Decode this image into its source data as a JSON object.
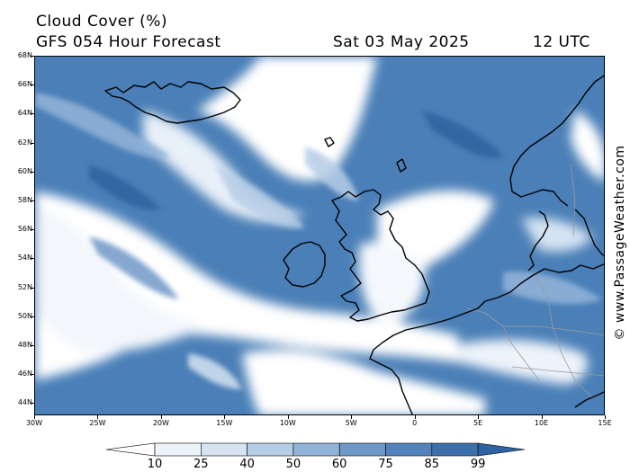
{
  "header": {
    "title": "Cloud Cover (%)",
    "subtitle": "GFS 054 Hour Forecast",
    "date": "Sat 03 May 2025",
    "time": "12 UTC"
  },
  "credit": "© www.PassageWeather.com",
  "axes": {
    "lat_labels": [
      "68N",
      "66N",
      "64N",
      "62N",
      "60N",
      "58N",
      "56N",
      "54N",
      "52N",
      "50N",
      "48N",
      "46N",
      "44N"
    ],
    "lon_labels": [
      "30W",
      "25W",
      "20W",
      "15W",
      "10W",
      "5W",
      "0",
      "5E",
      "10E",
      "15E"
    ]
  },
  "legend": {
    "labels": [
      "10",
      "25",
      "40",
      "50",
      "60",
      "75",
      "85",
      "99"
    ],
    "colors": [
      "#ffffff",
      "#eef3fa",
      "#d5e3f2",
      "#b6cde6",
      "#93b4d9",
      "#6f98c8",
      "#5283bb",
      "#3d6faa",
      "#2f62a0"
    ]
  },
  "map": {
    "ocean_color": "#4a7fb7",
    "clear_color": "#ffffff",
    "coast_color": "#000000",
    "border_color": "#9a9a9a"
  }
}
